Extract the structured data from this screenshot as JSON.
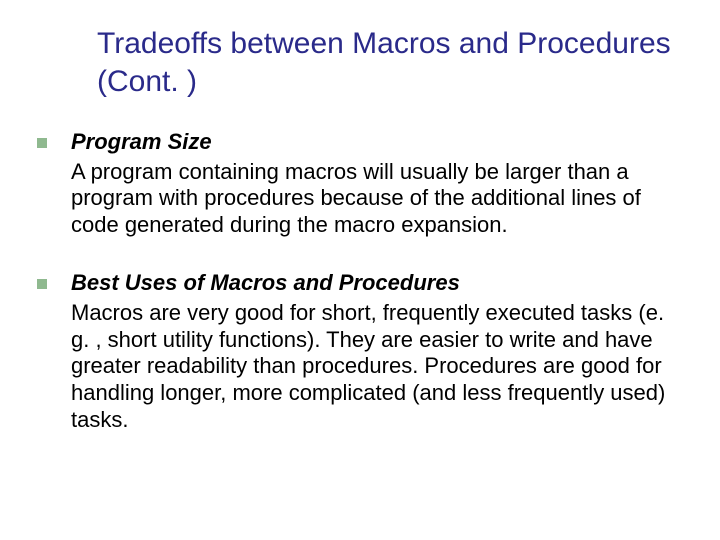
{
  "slide": {
    "title": "Tradeoffs between Macros and Procedures (Cont. )",
    "title_color": "#2a2a8a",
    "title_fontsize": 30,
    "bullet_color": "#8fb98f",
    "bullet_size": 10,
    "body_fontsize": 22,
    "body_color": "#000000",
    "background_color": "#ffffff",
    "items": [
      {
        "heading": "Program Size",
        "body": "A program containing macros will usually be larger than a program with procedures because of the additional lines of code generated during the macro expansion."
      },
      {
        "heading": "Best Uses of Macros and Procedures",
        "body": "Macros are very good for short, frequently executed tasks (e. g. , short utility functions).  They are easier to write and have greater readability than procedures.  Procedures are good for handling longer, more complicated (and less frequently used) tasks."
      }
    ]
  }
}
